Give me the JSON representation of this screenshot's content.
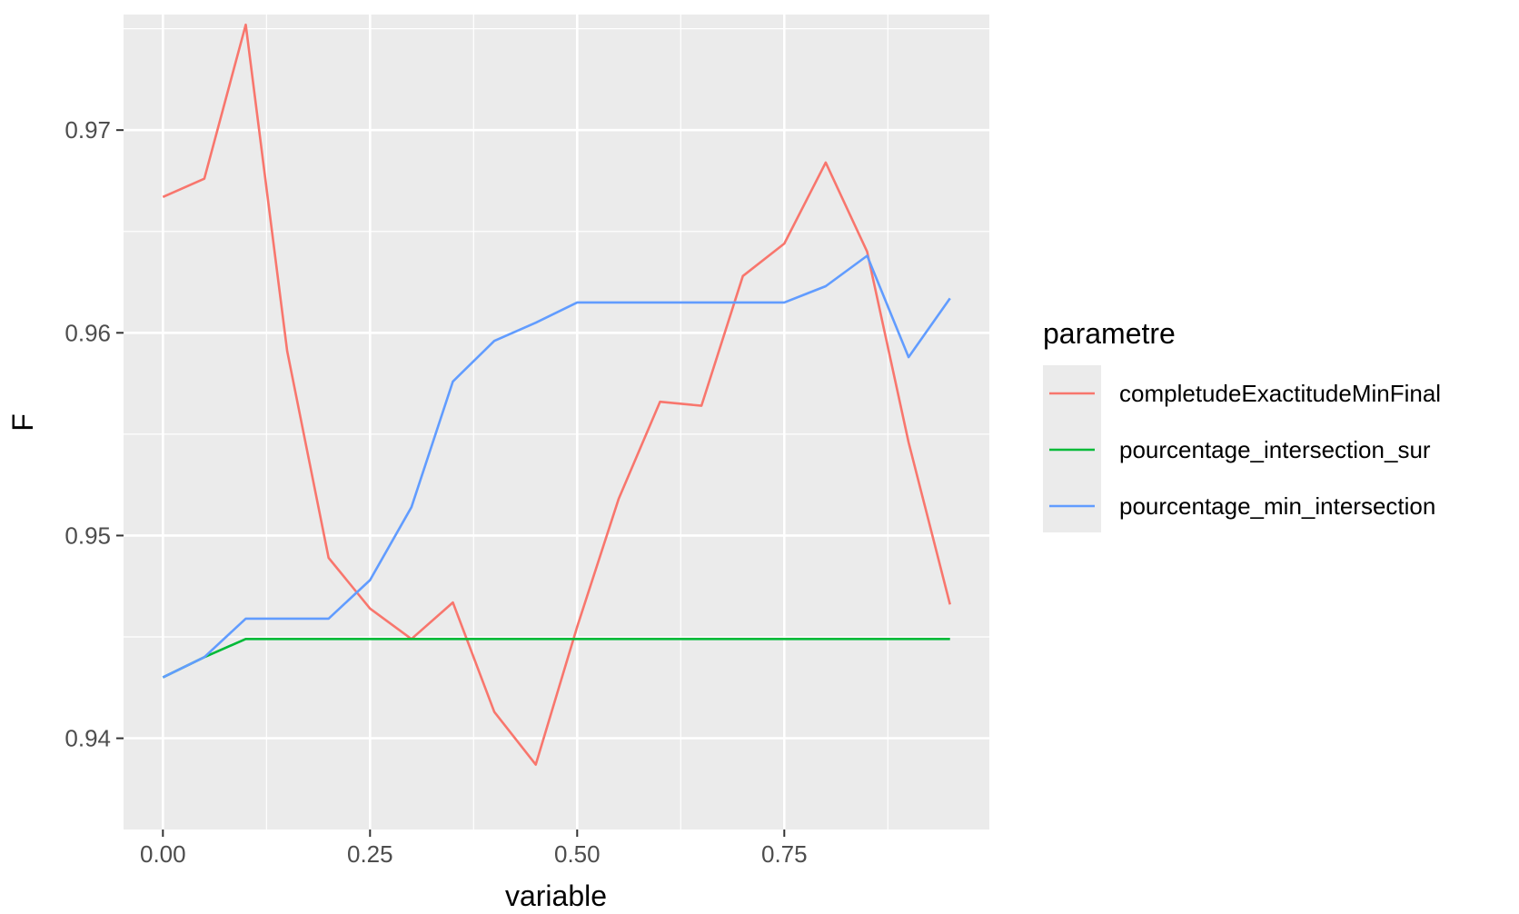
{
  "chart_data": {
    "type": "line",
    "xlabel": "variable",
    "ylabel": "F",
    "xlim": [
      -0.0475,
      0.9975
    ],
    "ylim": [
      0.9355,
      0.9757
    ],
    "x_ticks": [
      0.0,
      0.25,
      0.5,
      0.75
    ],
    "x_tick_labels": [
      "0.00",
      "0.25",
      "0.50",
      "0.75"
    ],
    "y_ticks": [
      0.94,
      0.95,
      0.96,
      0.97
    ],
    "y_tick_labels": [
      "0.94",
      "0.95",
      "0.96",
      "0.97"
    ],
    "grid": true,
    "panel_background": "#ebebeb",
    "legend": {
      "title": "parametre",
      "position": "right"
    },
    "x": [
      0.0,
      0.05,
      0.1,
      0.15,
      0.2,
      0.25,
      0.3,
      0.35,
      0.4,
      0.45,
      0.5,
      0.55,
      0.6,
      0.65,
      0.7,
      0.75,
      0.8,
      0.85,
      0.9,
      0.95
    ],
    "series": [
      {
        "name": "completudeExactitudeMinFinal",
        "color": "#f8766d",
        "values": [
          0.9667,
          0.9676,
          0.9752,
          0.9591,
          0.9489,
          0.9464,
          0.9449,
          0.9467,
          0.9413,
          0.9387,
          0.9455,
          0.9518,
          0.9566,
          0.9564,
          0.9628,
          0.9644,
          0.9684,
          0.964,
          0.9546,
          0.9466
        ]
      },
      {
        "name": "pourcentage_intersection_sur",
        "color": "#00ba38",
        "values": [
          0.943,
          0.944,
          0.9449,
          0.9449,
          0.9449,
          0.9449,
          0.9449,
          0.9449,
          0.9449,
          0.9449,
          0.9449,
          0.9449,
          0.9449,
          0.9449,
          0.9449,
          0.9449,
          0.9449,
          0.9449,
          0.9449,
          0.9449
        ]
      },
      {
        "name": "pourcentage_min_intersection",
        "color": "#619cff",
        "values": [
          0.943,
          0.944,
          0.9459,
          0.9459,
          0.9459,
          0.9478,
          0.9514,
          0.9576,
          0.9596,
          0.9605,
          0.9615,
          0.9615,
          0.9615,
          0.9615,
          0.9615,
          0.9615,
          0.9623,
          0.9638,
          0.9588,
          0.9617
        ]
      }
    ]
  }
}
